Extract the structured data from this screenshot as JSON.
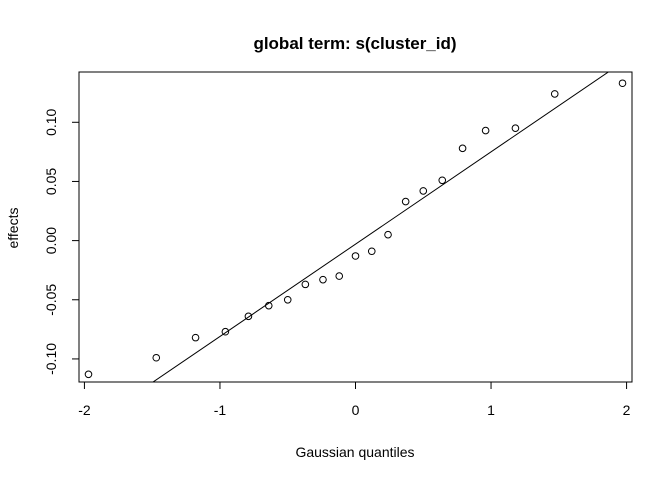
{
  "chart_data": {
    "type": "scatter",
    "title": "global term: s(cluster_id)",
    "xlabel": "Gaussian quantiles",
    "ylabel": "effects",
    "xlim": [
      -2.04,
      2.04
    ],
    "ylim": [
      -0.1195,
      0.1425
    ],
    "x_ticks": [
      -2,
      -1,
      0,
      1,
      2
    ],
    "x_tick_labels": [
      "-2",
      "-1",
      "0",
      "1",
      "2"
    ],
    "y_ticks": [
      -0.1,
      -0.05,
      0.0,
      0.05,
      0.1
    ],
    "y_tick_labels": [
      "-0.10",
      "-0.05",
      "0.00",
      "0.05",
      "0.10"
    ],
    "grid": false,
    "points": [
      {
        "x": -1.97,
        "y": -0.113
      },
      {
        "x": -1.47,
        "y": -0.099
      },
      {
        "x": -1.18,
        "y": -0.082
      },
      {
        "x": -0.96,
        "y": -0.077
      },
      {
        "x": -0.79,
        "y": -0.064
      },
      {
        "x": -0.64,
        "y": -0.055
      },
      {
        "x": -0.5,
        "y": -0.05
      },
      {
        "x": -0.37,
        "y": -0.037
      },
      {
        "x": -0.24,
        "y": -0.033
      },
      {
        "x": -0.12,
        "y": -0.03
      },
      {
        "x": 0.0,
        "y": -0.013
      },
      {
        "x": 0.12,
        "y": -0.009
      },
      {
        "x": 0.24,
        "y": 0.005
      },
      {
        "x": 0.37,
        "y": 0.033
      },
      {
        "x": 0.5,
        "y": 0.042
      },
      {
        "x": 0.64,
        "y": 0.051
      },
      {
        "x": 0.79,
        "y": 0.078
      },
      {
        "x": 0.96,
        "y": 0.093
      },
      {
        "x": 1.18,
        "y": 0.095
      },
      {
        "x": 1.47,
        "y": 0.124
      },
      {
        "x": 1.97,
        "y": 0.133
      }
    ],
    "reference_line": {
      "intercept": -0.003,
      "slope": 0.078
    }
  }
}
